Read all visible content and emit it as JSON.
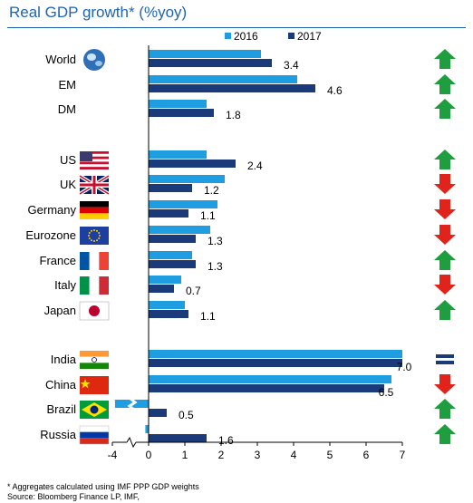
{
  "title": "Real GDP growth* (%yoy)",
  "footnote": {
    "line1": "* Aggregates calculated using IMF PPP GDP weights",
    "line2": "Source: Bloomberg Finance LP, IMF,"
  },
  "colors": {
    "2016": "#1e9ee0",
    "2017": "#1a3a7a",
    "up": "#1e9e3e",
    "down": "#e0231b",
    "flat": "#1a3a7a",
    "title": "#1e64b4"
  },
  "chart_data": {
    "type": "bar",
    "orientation": "horizontal",
    "title": "Real GDP growth* (%yoy)",
    "xlim": [
      -4,
      7
    ],
    "x_ticks": [
      "-4",
      "0",
      "1",
      "2",
      "3",
      "4",
      "5",
      "6",
      "7"
    ],
    "axis_break": "between -4 and 0",
    "legend_position": "top-center",
    "categories": [
      "World",
      "EM",
      "DM",
      "US",
      "UK",
      "Germany",
      "Eurozone",
      "France",
      "Italy",
      "Japan",
      "India",
      "China",
      "Brazil",
      "Russia"
    ],
    "series": [
      {
        "name": "2016",
        "values": [
          3.1,
          4.1,
          1.6,
          1.6,
          2.1,
          1.9,
          1.7,
          1.2,
          0.9,
          1.0,
          7.0,
          6.7,
          -3.6,
          -0.2
        ]
      },
      {
        "name": "2017",
        "values": [
          3.4,
          4.6,
          1.8,
          2.4,
          1.2,
          1.1,
          1.3,
          1.3,
          0.7,
          1.1,
          7.0,
          6.5,
          0.5,
          1.6
        ]
      }
    ],
    "data_labels_2017": [
      "3.4",
      "4.6",
      "1.8",
      "2.4",
      "1.2",
      "1.1",
      "1.3",
      "1.3",
      "0.7",
      "1.1",
      "7.0",
      "6.5",
      "0.5",
      "1.6"
    ],
    "flags": [
      "globe",
      null,
      null,
      "us",
      "uk",
      "germany",
      "eu",
      "france",
      "italy",
      "japan",
      "india",
      "china",
      "brazil",
      "russia"
    ],
    "trend_arrows": [
      "up",
      "up",
      "up",
      "up",
      "down",
      "down",
      "down",
      "up",
      "down",
      "up",
      "flat",
      "down",
      "up",
      "up"
    ]
  }
}
